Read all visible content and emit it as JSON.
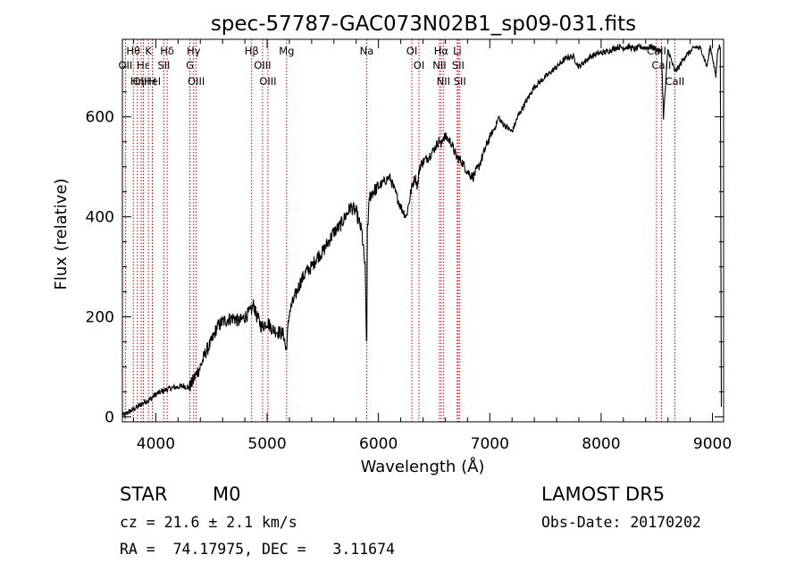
{
  "chart_data": {
    "type": "line",
    "title": "spec-57787-GAC073N02B1_sp09-031.fits",
    "xlabel": "Wavelength (Å)",
    "ylabel": "Flux (relative)",
    "xlim": [
      3700,
      9100
    ],
    "ylim": [
      -10,
      755
    ],
    "xticks": [
      4000,
      5000,
      6000,
      7000,
      8000,
      9000
    ],
    "yticks": [
      0,
      200,
      400,
      600
    ],
    "grid": false,
    "series": [
      {
        "x": [
          3700,
          3720,
          3740,
          3760,
          3800,
          3850,
          3900,
          3950,
          4000,
          4050,
          4100,
          4150,
          4200,
          4250,
          4300,
          4330,
          4350,
          4400,
          4450,
          4500,
          4550,
          4600,
          4650,
          4700,
          4750,
          4800,
          4850,
          4880,
          4900,
          4950,
          5000,
          5050,
          5100,
          5150,
          5170,
          5200,
          5250,
          5300,
          5350,
          5400,
          5450,
          5500,
          5550,
          5600,
          5650,
          5700,
          5750,
          5800,
          5850,
          5880,
          5890,
          5895,
          5900,
          5910,
          5920,
          5950,
          6000,
          6050,
          6100,
          6150,
          6200,
          6250,
          6300,
          6330,
          6350,
          6370,
          6400,
          6450,
          6500,
          6550,
          6563,
          6580,
          6600,
          6650,
          6700,
          6750,
          6800,
          6850,
          6900,
          6950,
          7000,
          7050,
          7080,
          7100,
          7150,
          7200,
          7250,
          7300,
          7350,
          7400,
          7450,
          7500,
          7550,
          7600,
          7650,
          7700,
          7750,
          7800,
          7850,
          7900,
          7950,
          8000,
          8050,
          8100,
          8150,
          8200,
          8250,
          8300,
          8350,
          8400,
          8450,
          8498,
          8542,
          8560,
          8600,
          8662,
          8700,
          8750,
          8800,
          8850,
          8900,
          8950,
          8980,
          9000,
          9030,
          9050,
          9060,
          9070,
          9080
        ],
        "y": [
          5,
          2,
          8,
          10,
          15,
          22,
          30,
          35,
          45,
          50,
          55,
          58,
          60,
          62,
          58,
          70,
          80,
          100,
          130,
          150,
          180,
          190,
          195,
          198,
          190,
          200,
          210,
          225,
          205,
          180,
          190,
          175,
          170,
          165,
          130,
          210,
          240,
          270,
          290,
          300,
          320,
          330,
          350,
          370,
          380,
          400,
          420,
          410,
          370,
          300,
          180,
          140,
          380,
          400,
          440,
          450,
          460,
          470,
          480,
          450,
          420,
          400,
          460,
          480,
          460,
          500,
          510,
          520,
          535,
          555,
          540,
          560,
          560,
          550,
          520,
          510,
          490,
          480,
          500,
          530,
          560,
          580,
          600,
          590,
          580,
          570,
          600,
          620,
          640,
          660,
          670,
          680,
          690,
          700,
          710,
          720,
          720,
          700,
          710,
          720,
          725,
          728,
          730,
          735,
          740,
          738,
          740,
          735,
          740,
          738,
          740,
          735,
          730,
          600,
          735,
          690,
          700,
          720,
          730,
          740,
          735,
          700,
          740,
          720,
          680,
          740,
          740,
          740,
          20
        ]
      }
    ],
    "line_markers": [
      {
        "label": "Hθ",
        "wl": 3798
      },
      {
        "label": "OII",
        "wl": 3727
      },
      {
        "label": "OIII",
        "wl": 3869
      },
      {
        "label": "Hε",
        "wl": 3889
      },
      {
        "label": "Hη",
        "wl": 3835
      },
      {
        "label": "K",
        "wl": 3934
      },
      {
        "label": "HeI",
        "wl": 3970
      },
      {
        "label": "H",
        "wl": 3969
      },
      {
        "label": "SII",
        "wl": 4072
      },
      {
        "label": "Hδ",
        "wl": 4102
      },
      {
        "label": "Hγ",
        "wl": 4340
      },
      {
        "label": "G",
        "wl": 4306
      },
      {
        "label": "OIII",
        "wl": 4363
      },
      {
        "label": "Hβ",
        "wl": 4861
      },
      {
        "label": "OIII",
        "wl": 4959
      },
      {
        "label": "OIII",
        "wl": 5007
      },
      {
        "label": "Mg",
        "wl": 5175
      },
      {
        "label": "Na",
        "wl": 5894
      },
      {
        "label": "OI",
        "wl": 6300
      },
      {
        "label": "OI",
        "wl": 6364
      },
      {
        "label": "Hα",
        "wl": 6563
      },
      {
        "label": "NII",
        "wl": 6548
      },
      {
        "label": "NII",
        "wl": 6583
      },
      {
        "label": "Li",
        "wl": 6708
      },
      {
        "label": "SII",
        "wl": 6716
      },
      {
        "label": "SII",
        "wl": 6731
      },
      {
        "label": "CaII",
        "wl": 8498
      },
      {
        "label": "CaII",
        "wl": 8542
      },
      {
        "label": "CaII",
        "wl": 8662
      }
    ]
  },
  "info": {
    "object_class": "STAR",
    "subclass": "M0",
    "survey": "LAMOST DR5",
    "cz": "cz = 21.6 ± 2.1 km/s",
    "obs_date": "Obs-Date: 20170202",
    "coords": "RA =  74.17975, DEC =   3.11674"
  },
  "colors": {
    "spectrum": "#000000",
    "marker_line": "#cc0000",
    "axes": "#000000"
  }
}
